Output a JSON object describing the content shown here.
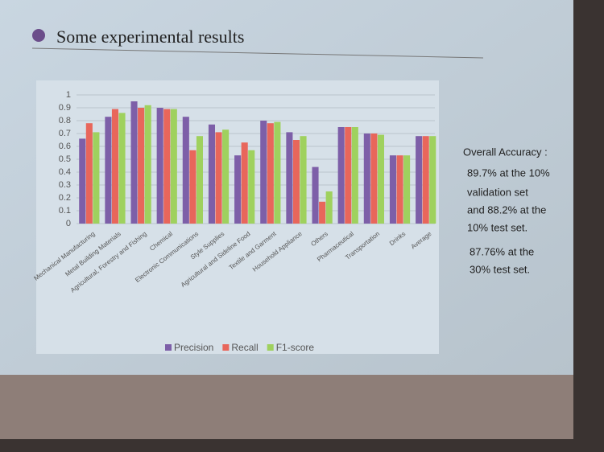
{
  "slide_title": "Some experimental results",
  "side_text": {
    "heading": "Overall Accuracy :",
    "lines": [
      "89.7% at the 10%",
      "validation set",
      "and 88.2% at the",
      "10% test set.",
      "87.76% at the",
      "30% test set."
    ]
  },
  "chart_data": {
    "type": "bar",
    "categories": [
      "Mechanical Manufacturing",
      "Metal Building Materials",
      "Agricultural, Forestry and Fishing",
      "Chemical",
      "Electronic Communications",
      "Style Supplies",
      "Agricultural and Sideline Food",
      "Textile and Garment",
      "Household Appliance",
      "Others",
      "Pharmaceutical",
      "Transportation",
      "Drinks",
      "Average"
    ],
    "series": [
      {
        "name": "Precision",
        "color": "#7d5fa8",
        "values": [
          0.66,
          0.83,
          0.95,
          0.9,
          0.83,
          0.77,
          0.53,
          0.8,
          0.71,
          0.44,
          0.75,
          0.7,
          0.53,
          0.68
        ]
      },
      {
        "name": "Recall",
        "color": "#e8665b",
        "values": [
          0.78,
          0.89,
          0.9,
          0.89,
          0.57,
          0.71,
          0.63,
          0.78,
          0.65,
          0.17,
          0.75,
          0.7,
          0.53,
          0.68
        ]
      },
      {
        "name": "F1-score",
        "color": "#9fd15e",
        "values": [
          0.71,
          0.86,
          0.92,
          0.89,
          0.68,
          0.73,
          0.57,
          0.79,
          0.68,
          0.25,
          0.75,
          0.69,
          0.53,
          0.68
        ]
      }
    ],
    "ylim": [
      0,
      1
    ],
    "yticks": [
      0,
      0.1,
      0.2,
      0.3,
      0.4,
      0.5,
      0.6,
      0.7,
      0.8,
      0.9,
      1
    ],
    "grid": true
  }
}
